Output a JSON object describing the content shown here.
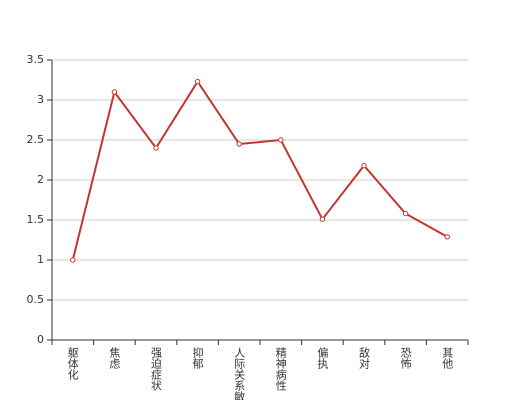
{
  "chart_data": {
    "type": "line",
    "categories": [
      "躯体化",
      "焦虑",
      "强迫症状",
      "抑郁",
      "人际关系敏感",
      "精神病性",
      "偏执",
      "敌对",
      "恐怖",
      "其他"
    ],
    "values": [
      1.0,
      3.1,
      2.4,
      3.23,
      2.45,
      2.5,
      1.51,
      2.18,
      1.58,
      1.29
    ],
    "color": "#c23531",
    "ylim": [
      0,
      3.5
    ],
    "yticks": [
      0,
      0.5,
      1,
      1.5,
      2,
      2.5,
      3,
      3.5
    ],
    "grid": true
  }
}
